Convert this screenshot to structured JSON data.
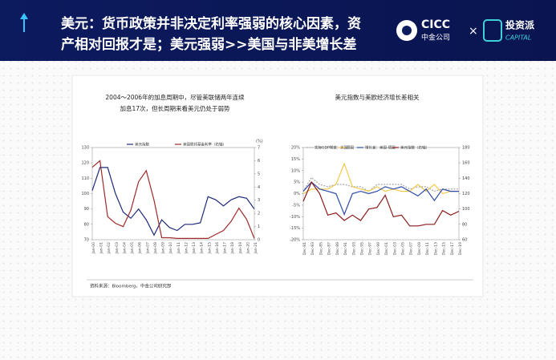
{
  "header": {
    "title_line1": "美元：货币政策并非决定利率强弱的核心因素，资",
    "title_line2": "产相对回报才是；美元强弱>>美国与非美增长差",
    "logo1": "CICC",
    "logo1_sub": "中金公司",
    "cross": "×",
    "logo2": "投资派",
    "logo2_sub": "CAPITAL"
  },
  "source": "资料来源：Bloomberg，中金公司研究部",
  "chart_data": [
    {
      "type": "line",
      "title": "2004～2006年的加息周期中，尽管美联储两年连续",
      "subtitle": "加息17次，但长周期来看美元仍处于弱势",
      "y2_label": "(%)",
      "categories": [
        "Jan-00",
        "Jan-01",
        "Jan-02",
        "Jan-03",
        "Jan-04",
        "Jan-05",
        "Jan-06",
        "Jan-07",
        "Jan-08",
        "Jan-09",
        "Jan-10",
        "Jan-11",
        "Jan-12",
        "Jan-13",
        "Jan-14",
        "Jan-15",
        "Jan-16",
        "Jan-17",
        "Jan-18",
        "Jan-19",
        "Jan-20",
        "Jan-21"
      ],
      "ylim": [
        70,
        130
      ],
      "yticks": [
        70,
        80,
        90,
        100,
        110,
        120,
        130
      ],
      "y2lim": [
        0,
        7
      ],
      "y2ticks": [
        0,
        1,
        2,
        3,
        4,
        5,
        6,
        7
      ],
      "series": [
        {
          "name": "美元指数",
          "color": "#1f2a7a",
          "values": [
            102,
            117,
            117,
            100,
            88,
            84,
            90,
            83,
            73,
            83,
            78,
            76,
            80,
            80,
            81,
            98,
            96,
            92,
            96,
            98,
            97,
            90
          ]
        },
        {
          "name": "美国联邦基金利率（右轴）",
          "color": "#9e2a2b",
          "axis": "y2",
          "values": [
            5.5,
            6.0,
            1.75,
            1.25,
            1.0,
            2.25,
            4.4,
            5.25,
            3.0,
            0.15,
            0.15,
            0.1,
            0.1,
            0.1,
            0.1,
            0.1,
            0.4,
            0.7,
            1.4,
            2.4,
            1.55,
            0.1
          ]
        }
      ]
    },
    {
      "type": "line",
      "title": "美元指数与美欧经济增长差相关",
      "categories": [
        "Dec-81",
        "Dec-83",
        "Dec-85",
        "Dec-87",
        "Dec-89",
        "Dec-91",
        "Dec-93",
        "Dec-95",
        "Dec-97",
        "Dec-99",
        "Dec-01",
        "Dec-03",
        "Dec-05",
        "Dec-07",
        "Dec-09",
        "Dec-11",
        "Dec-13",
        "Dec-15",
        "Dec-17",
        "Dec-19"
      ],
      "ylim": [
        -20,
        20
      ],
      "yticks": [
        {
          "value": -20,
          "label": "-20%"
        },
        {
          "value": -15,
          "label": "-15%"
        },
        {
          "value": -10,
          "label": "-10%"
        },
        {
          "value": -5,
          "label": "-5%"
        },
        {
          "value": 0,
          "label": "0%"
        },
        {
          "value": 5,
          "label": "5%"
        },
        {
          "value": 10,
          "label": "10%"
        },
        {
          "value": 15,
          "label": "15%"
        },
        {
          "value": 20,
          "label": "20%"
        }
      ],
      "y2lim": [
        60,
        180
      ],
      "y2ticks": [
        60,
        80,
        100,
        120,
        140,
        160,
        180
      ],
      "series": [
        {
          "name": "实际GDP增速：美国",
          "color": "#a6a6a6",
          "dashed": true,
          "values": [
            1,
            7,
            4,
            3,
            4,
            4,
            3,
            3,
            1,
            4,
            4,
            4,
            4,
            2,
            3,
            3,
            1,
            2,
            2,
            2
          ]
        },
        {
          "name": "德国",
          "color": "#f2c94c",
          "values": [
            0,
            2,
            2,
            2,
            4,
            13,
            3,
            2,
            1,
            3,
            1,
            2,
            1,
            1,
            4,
            1,
            4,
            0,
            1,
            1
          ]
        },
        {
          "name": "增长差：美国-德国",
          "color": "#2e4aa8",
          "values": [
            1,
            5,
            2,
            1,
            0,
            -9,
            0,
            1,
            0,
            1,
            3,
            2,
            3,
            1,
            -1,
            2,
            -3,
            2,
            1,
            1
          ]
        },
        {
          "name": "美元指数（右轴）",
          "color": "#8b1a1a",
          "axis": "y2",
          "values": [
            110,
            135,
            120,
            92,
            95,
            85,
            92,
            85,
            100,
            102,
            118,
            90,
            92,
            78,
            78,
            80,
            80,
            98,
            92,
            97
          ]
        }
      ]
    }
  ]
}
